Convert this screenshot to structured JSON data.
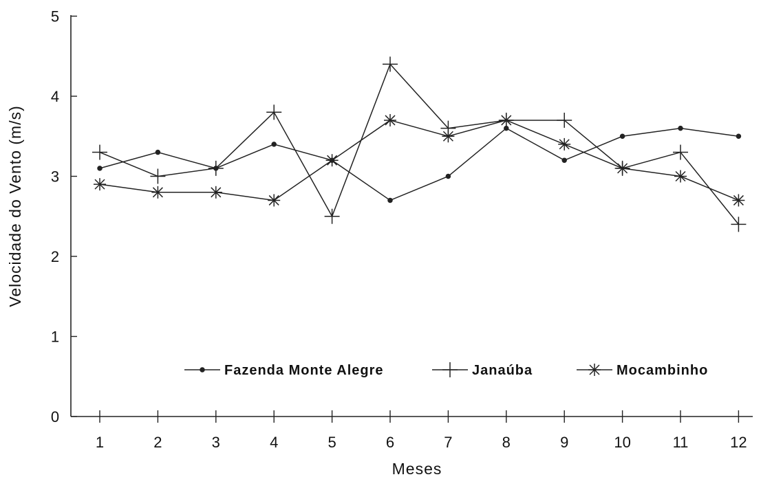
{
  "chart_data": {
    "type": "line",
    "title": "",
    "xlabel": "Meses",
    "ylabel": "Velocidade do Vento (m/s)",
    "x": [
      1,
      2,
      3,
      4,
      5,
      6,
      7,
      8,
      9,
      10,
      11,
      12
    ],
    "x_tick_labels": [
      "1",
      "2",
      "3",
      "4",
      "5",
      "6",
      "7",
      "8",
      "9",
      "10",
      "11",
      "12"
    ],
    "ylim": [
      0,
      5
    ],
    "y_ticks": [
      0,
      1,
      2,
      3,
      4,
      5
    ],
    "y_tick_labels": [
      "0",
      "1",
      "2",
      "3",
      "4",
      "5"
    ],
    "grid": false,
    "legend_position": "bottom-center, inside plot",
    "series": [
      {
        "name": "Fazenda Monte Alegre",
        "marker": "dot",
        "values": [
          3.1,
          3.3,
          3.1,
          3.4,
          3.2,
          2.7,
          3.0,
          3.6,
          3.2,
          3.5,
          3.6,
          3.5
        ]
      },
      {
        "name": "Janaúba",
        "marker": "plus",
        "values": [
          3.3,
          3.0,
          3.1,
          3.8,
          2.5,
          4.4,
          3.6,
          3.7,
          3.7,
          3.1,
          3.3,
          2.4
        ]
      },
      {
        "name": "Mocambinho",
        "marker": "asterisk",
        "values": [
          2.9,
          2.8,
          2.8,
          2.7,
          3.2,
          3.7,
          3.5,
          3.7,
          3.4,
          3.1,
          3.0,
          2.7
        ]
      }
    ]
  }
}
